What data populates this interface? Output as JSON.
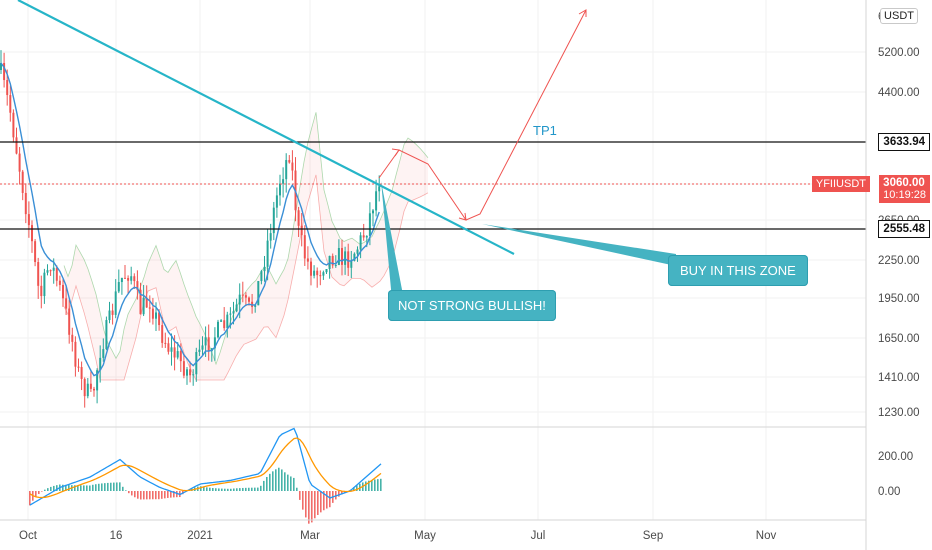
{
  "currency": "USDT",
  "symbol": "YFIIUSDT",
  "price_axis": {
    "top_partial": "6",
    "ticks": [
      "5200.00",
      "4400.00",
      "3633.94",
      "3060.00",
      "2650.00",
      "2555.48",
      "2250.00",
      "1950.00",
      "1650.00",
      "1410.00",
      "1230.00"
    ]
  },
  "levels": {
    "resistance": "3633.94",
    "support": "2555.48",
    "last_price": "3060.00",
    "countdown": "10:19:28"
  },
  "indicator_axis": [
    "200.00",
    "0.00"
  ],
  "time_axis": [
    "Oct",
    "16",
    "2021",
    "Mar",
    "May",
    "Jul",
    "Sep",
    "Nov"
  ],
  "annotations": {
    "tp1": "TP1",
    "not_bullish": "NOT STRONG BULLISH!",
    "buy_zone": "BUY IN THIS ZONE"
  },
  "colors": {
    "up": "#26a69a",
    "down": "#ef5350",
    "trendline": "#26b5c8",
    "arrow": "#ef5350",
    "callout": "#45b3c2"
  }
}
